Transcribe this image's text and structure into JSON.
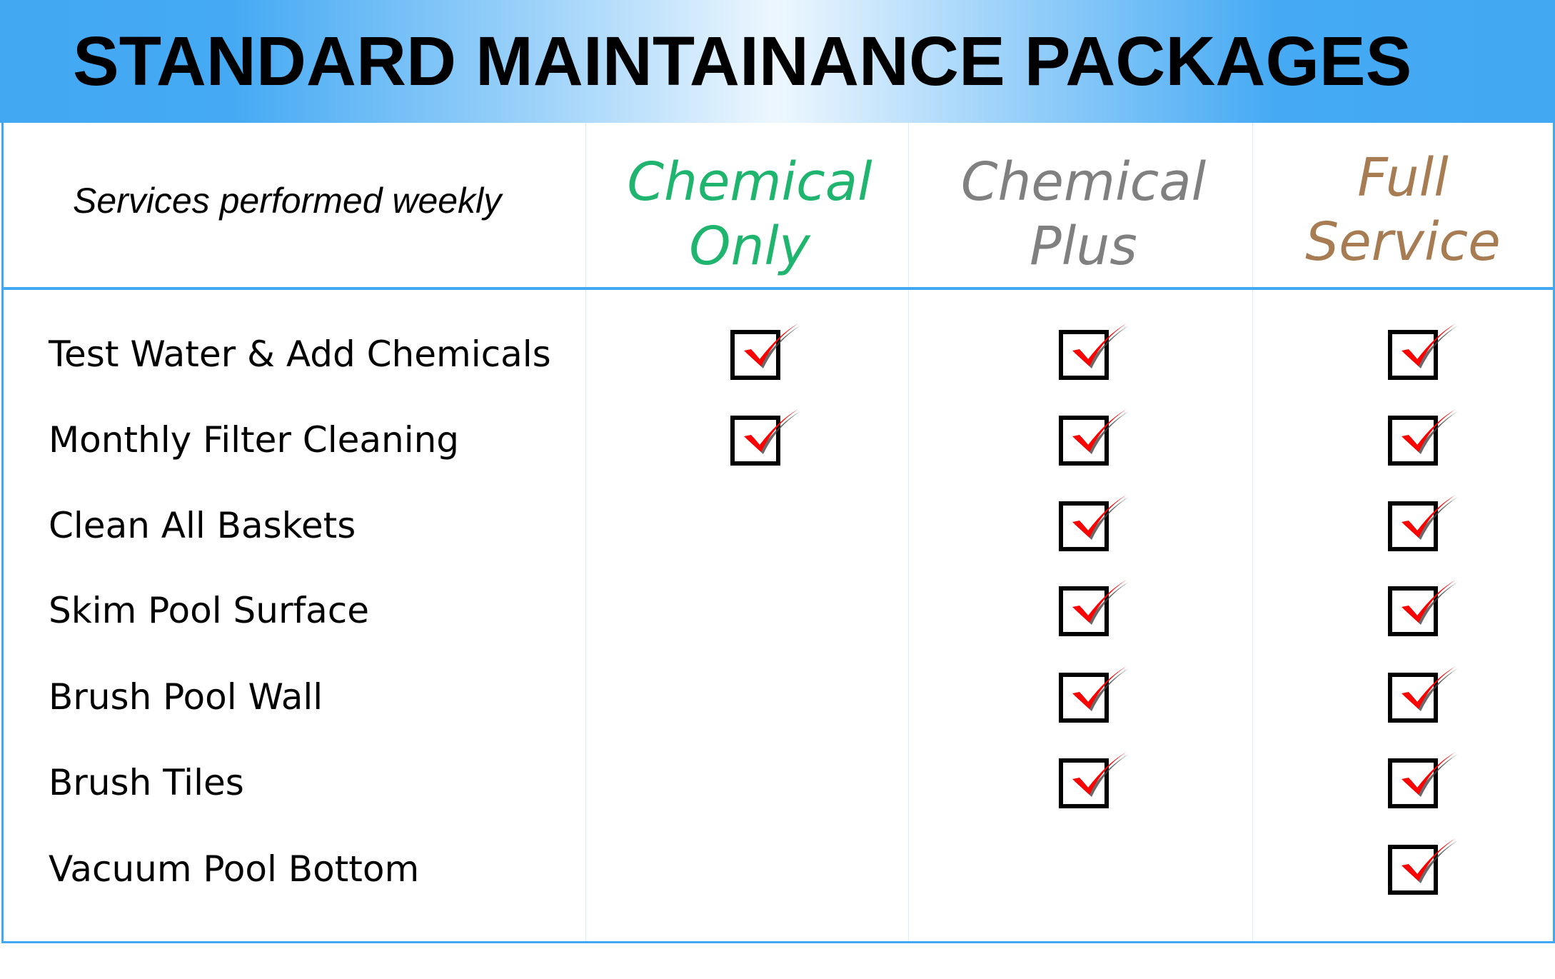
{
  "title": "STANDARD MAINTAINANCE PACKAGES",
  "subtitle": "Services performed weekly",
  "colors": {
    "header_blue": "#42a8f2",
    "chemical_only": "#1fb56f",
    "chemical_plus": "#808080",
    "full_service": "#a87c52",
    "check": "#ff0000"
  },
  "packages": [
    {
      "line1": "Chemical",
      "line2": "Only"
    },
    {
      "line1": "Chemical",
      "line2": "Plus"
    },
    {
      "line1": "Full",
      "line2": "Service"
    }
  ],
  "services": [
    {
      "label": "Test Water & Add Chemicals",
      "checks": [
        true,
        true,
        true
      ]
    },
    {
      "label": "Monthly Filter Cleaning",
      "checks": [
        true,
        true,
        true
      ]
    },
    {
      "label": "Clean All Baskets",
      "checks": [
        false,
        true,
        true
      ]
    },
    {
      "label": "Skim Pool Surface",
      "checks": [
        false,
        true,
        true
      ]
    },
    {
      "label": "Brush Pool Wall",
      "checks": [
        false,
        true,
        true
      ]
    },
    {
      "label": "Brush Tiles",
      "checks": [
        false,
        true,
        true
      ]
    },
    {
      "label": "Vacuum Pool Bottom",
      "checks": [
        false,
        false,
        true
      ]
    }
  ]
}
